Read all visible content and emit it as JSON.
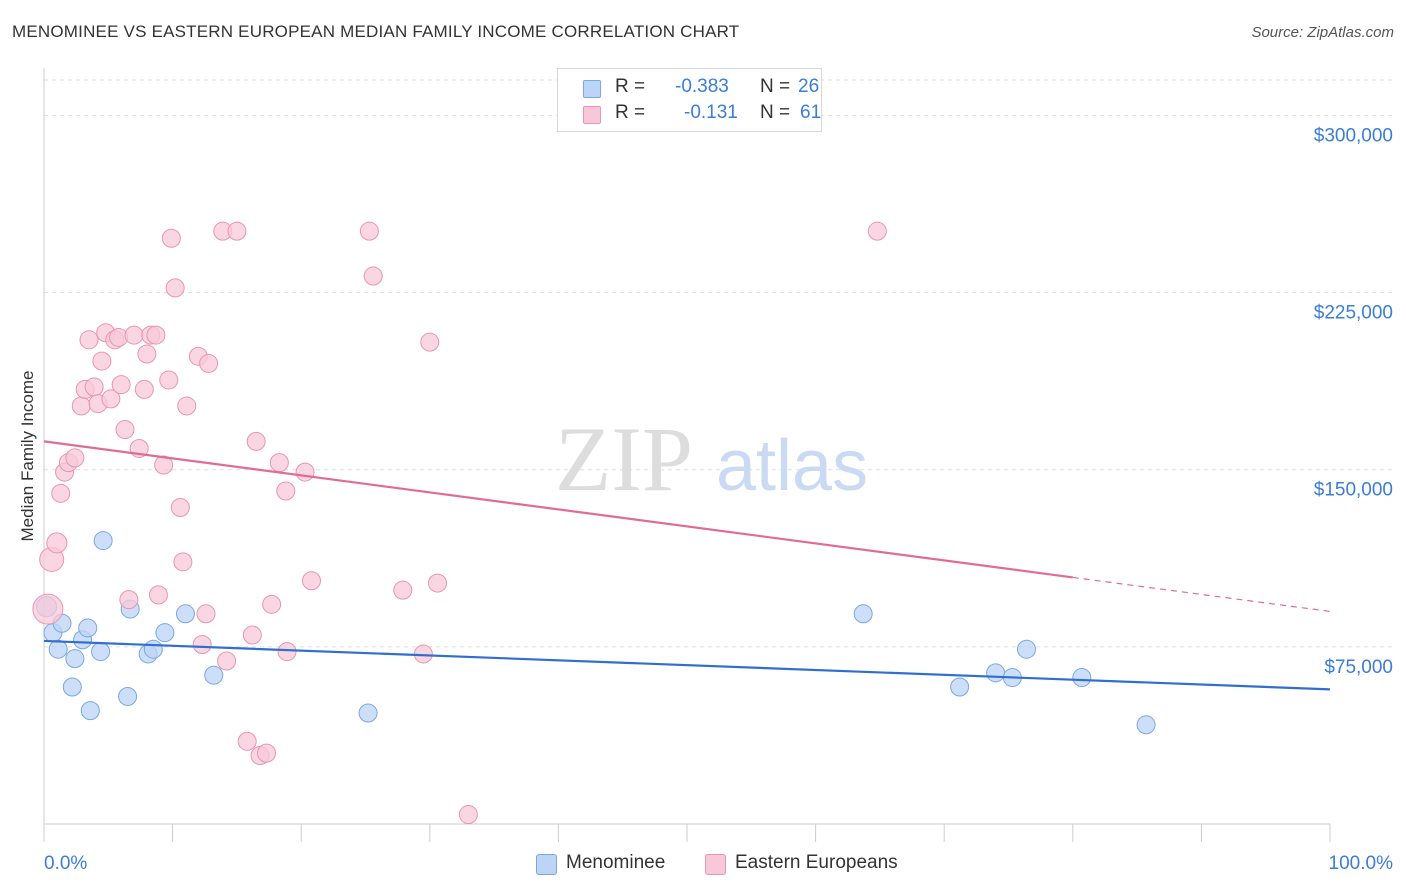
{
  "header": {
    "title": "MENOMINEE VS EASTERN EUROPEAN MEDIAN FAMILY INCOME CORRELATION CHART",
    "source": "Source: ZipAtlas.com"
  },
  "watermark": {
    "part1": "ZIP",
    "part2": "atlas"
  },
  "legend": {
    "r_label": "R =",
    "n_label": "N =",
    "rows": [
      {
        "r": "-0.383",
        "n": "26",
        "fill": "#bcd4f6",
        "stroke": "#7aa7e0"
      },
      {
        "r": "-0.131",
        "n": "61",
        "fill": "#f8c8d8",
        "stroke": "#e895b2"
      }
    ]
  },
  "chart_data": {
    "type": "scatter",
    "title": "MENOMINEE VS EASTERN EUROPEAN MEDIAN FAMILY INCOME CORRELATION CHART",
    "ylabel": "Median Family Income",
    "xlim": [
      0,
      100
    ],
    "ylim": [
      0,
      315000
    ],
    "y_ticks": [
      75000,
      150000,
      225000,
      300000
    ],
    "y_tick_labels": [
      "$75,000",
      "$150,000",
      "$225,000",
      "$300,000"
    ],
    "x_tick_labels": [
      "0.0%",
      "100.0%"
    ],
    "grid": true,
    "colors": {
      "menominee": "#3b7dd8",
      "eastern": "#e8709a",
      "tick_label": "#3b7dd8"
    },
    "series": [
      {
        "name": "Menominee",
        "fill": "#bcd4f6",
        "stroke": "#7aa7e0",
        "line_color": "#2f6fcf",
        "trend": {
          "x": [
            0,
            100
          ],
          "y": [
            77500,
            57000
          ],
          "solid_to": 100
        },
        "points": [
          [
            0.2,
            92000,
            10
          ],
          [
            0.7,
            81000,
            9
          ],
          [
            1.1,
            74000,
            9
          ],
          [
            1.4,
            85000,
            9
          ],
          [
            2.4,
            70000,
            9
          ],
          [
            2.2,
            58000,
            9
          ],
          [
            3.0,
            78000,
            9
          ],
          [
            3.4,
            83000,
            9
          ],
          [
            3.6,
            48000,
            9
          ],
          [
            4.4,
            73000,
            9
          ],
          [
            4.6,
            120000,
            9
          ],
          [
            6.5,
            54000,
            9
          ],
          [
            6.7,
            91000,
            9
          ],
          [
            8.1,
            72000,
            9
          ],
          [
            8.5,
            74000,
            9
          ],
          [
            9.4,
            81000,
            9
          ],
          [
            11.0,
            89000,
            9
          ],
          [
            13.2,
            63000,
            9
          ],
          [
            25.2,
            47000,
            9
          ],
          [
            63.7,
            89000,
            9
          ],
          [
            71.2,
            58000,
            9
          ],
          [
            74.0,
            64000,
            9
          ],
          [
            75.3,
            62000,
            9
          ],
          [
            76.4,
            74000,
            9
          ],
          [
            80.7,
            62000,
            9
          ],
          [
            85.7,
            42000,
            9
          ]
        ]
      },
      {
        "name": "Eastern Europeans",
        "fill": "#f8c8d8",
        "stroke": "#e895b2",
        "line_color": "#e06c96",
        "trend": {
          "x": [
            0,
            100
          ],
          "y": [
            162000,
            90000
          ],
          "solid_to": 80
        },
        "points": [
          [
            0.3,
            91000,
            15
          ],
          [
            0.6,
            112000,
            12
          ],
          [
            1.0,
            119000,
            10
          ],
          [
            1.3,
            140000,
            9
          ],
          [
            1.6,
            149000,
            9
          ],
          [
            1.9,
            153000,
            9
          ],
          [
            2.4,
            155000,
            9
          ],
          [
            2.9,
            177000,
            9
          ],
          [
            3.2,
            184000,
            9
          ],
          [
            3.5,
            205000,
            9
          ],
          [
            3.9,
            185000,
            9
          ],
          [
            4.2,
            178000,
            9
          ],
          [
            4.5,
            196000,
            9
          ],
          [
            4.8,
            208000,
            9
          ],
          [
            5.2,
            180000,
            9
          ],
          [
            5.5,
            205000,
            9
          ],
          [
            5.8,
            206000,
            9
          ],
          [
            6.0,
            186000,
            9
          ],
          [
            6.3,
            167000,
            9
          ],
          [
            6.6,
            95000,
            9
          ],
          [
            7.0,
            207000,
            9
          ],
          [
            7.4,
            159000,
            9
          ],
          [
            7.8,
            184000,
            9
          ],
          [
            8.0,
            199000,
            9
          ],
          [
            8.3,
            207000,
            9
          ],
          [
            8.7,
            207000,
            9
          ],
          [
            8.9,
            97000,
            9
          ],
          [
            9.3,
            152000,
            9
          ],
          [
            9.7,
            188000,
            9
          ],
          [
            9.9,
            248000,
            9
          ],
          [
            10.2,
            227000,
            9
          ],
          [
            10.6,
            134000,
            9
          ],
          [
            10.8,
            111000,
            9
          ],
          [
            11.1,
            177000,
            9
          ],
          [
            12.0,
            198000,
            9
          ],
          [
            12.3,
            76000,
            9
          ],
          [
            12.6,
            89000,
            9
          ],
          [
            12.8,
            195000,
            9
          ],
          [
            13.9,
            251000,
            9
          ],
          [
            14.2,
            69000,
            9
          ],
          [
            15.0,
            251000,
            9
          ],
          [
            15.8,
            35000,
            9
          ],
          [
            16.2,
            80000,
            9
          ],
          [
            16.5,
            162000,
            9
          ],
          [
            16.8,
            29000,
            9
          ],
          [
            17.3,
            30000,
            9
          ],
          [
            17.7,
            93000,
            9
          ],
          [
            18.3,
            153000,
            9
          ],
          [
            18.8,
            141000,
            9
          ],
          [
            18.9,
            73000,
            9
          ],
          [
            20.3,
            149000,
            9
          ],
          [
            20.8,
            103000,
            9
          ],
          [
            25.3,
            251000,
            9
          ],
          [
            25.6,
            232000,
            9
          ],
          [
            27.9,
            99000,
            9
          ],
          [
            29.5,
            72000,
            9
          ],
          [
            30.0,
            204000,
            9
          ],
          [
            30.6,
            102000,
            9
          ],
          [
            33.0,
            4000,
            9
          ],
          [
            64.8,
            251000,
            9
          ],
          [
            77.5,
            50000,
            0
          ]
        ]
      }
    ]
  },
  "bottom_legend": [
    {
      "label": "Menominee",
      "fill": "#bcd4f6",
      "stroke": "#7aa7e0"
    },
    {
      "label": "Eastern Europeans",
      "fill": "#f8c8d8",
      "stroke": "#e895b2"
    }
  ]
}
